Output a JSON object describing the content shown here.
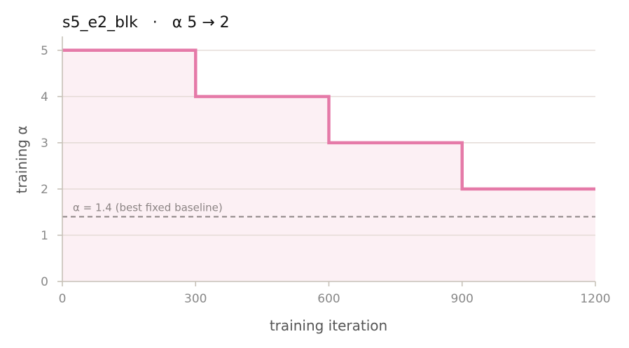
{
  "chart_data": {
    "type": "line",
    "title": "s5_e2_blk   ·   α 5 → 2",
    "xlabel": "training iteration",
    "ylabel": "training α",
    "xlim": [
      0,
      1200
    ],
    "ylim": [
      0,
      5.3
    ],
    "xticks": [
      0,
      300,
      600,
      900,
      1200
    ],
    "yticks": [
      0,
      1,
      2,
      3,
      4,
      5
    ],
    "x_tick_labels": [
      "0",
      "300",
      "600",
      "900",
      "1200"
    ],
    "y_tick_labels": [
      "0",
      "1",
      "2",
      "3",
      "4",
      "5"
    ],
    "grid": "horizontal",
    "series": [
      {
        "style": "step",
        "color": "#e57aa8",
        "fill_color": "#fcf0f4",
        "x": [
          0,
          300,
          600,
          900,
          1200
        ],
        "y": [
          5,
          4,
          3,
          2,
          2
        ]
      }
    ],
    "reference_line": {
      "y": 1.4,
      "label": "α = 1.4 (best fixed baseline)",
      "color": "#8c8484",
      "style": "dashed"
    }
  }
}
